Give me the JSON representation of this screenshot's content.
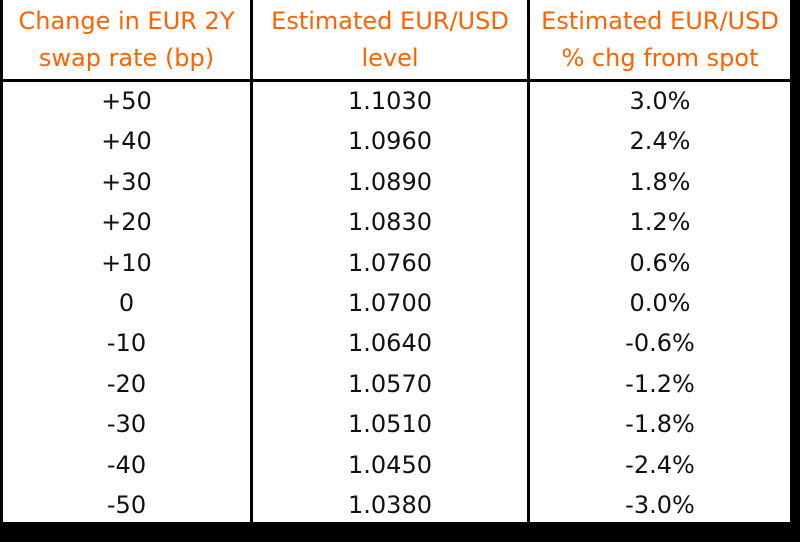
{
  "table": {
    "header": [
      [
        "Change in EUR 2Y",
        "swap rate (bp)"
      ],
      [
        "Estimated EUR/USD",
        "level"
      ],
      [
        "Estimated EUR/USD",
        "% chg from spot"
      ]
    ],
    "rows": [
      [
        "+50",
        "1.1030",
        "3.0%"
      ],
      [
        "+40",
        "1.0960",
        "2.4%"
      ],
      [
        "+30",
        "1.0890",
        "1.8%"
      ],
      [
        "+20",
        "1.0830",
        "1.2%"
      ],
      [
        "+10",
        "1.0760",
        "0.6%"
      ],
      [
        "0",
        "1.0700",
        "0.0%"
      ],
      [
        "-10",
        "1.0640",
        "-0.6%"
      ],
      [
        "-20",
        "1.0570",
        "-1.2%"
      ],
      [
        "-30",
        "1.0510",
        "-1.8%"
      ],
      [
        "-40",
        "1.0450",
        "-2.4%"
      ],
      [
        "-50",
        "1.0380",
        "-3.0%"
      ]
    ]
  }
}
